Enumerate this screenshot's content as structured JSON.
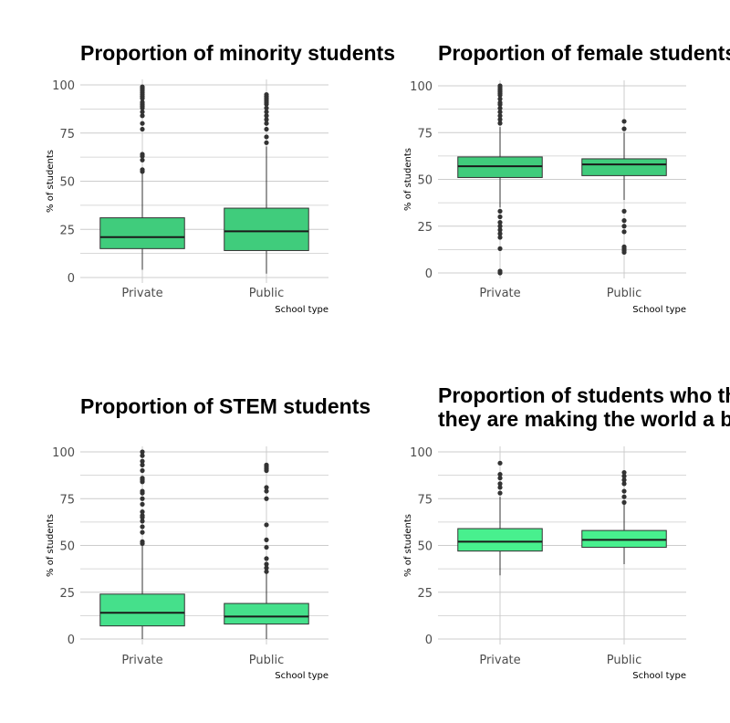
{
  "chart_data": [
    {
      "type": "boxplot",
      "title": [
        "Proportion of minority students"
      ],
      "xlabel": "School type",
      "ylabel": "% of students",
      "ylim": [
        0,
        100
      ],
      "yticks": [
        "0",
        "25",
        "50",
        "75",
        "100"
      ],
      "fill": "#40cc7c",
      "grid": true,
      "categories": [
        "Private",
        "Public"
      ],
      "boxes": [
        {
          "category": "Private",
          "lower_whisker": 4,
          "q1": 15,
          "median": 21,
          "q3": 31,
          "upper_whisker": 54,
          "outliers": [
            55,
            56,
            61,
            63,
            64,
            77,
            80,
            84,
            86,
            88,
            89,
            90,
            91,
            93,
            94,
            95,
            96,
            97,
            98,
            99
          ]
        },
        {
          "category": "Public",
          "lower_whisker": 2,
          "q1": 14,
          "median": 24,
          "q3": 36,
          "upper_whisker": 68,
          "outliers": [
            70,
            73,
            77,
            80,
            82,
            84,
            86,
            88,
            90,
            91,
            92,
            93,
            94,
            95
          ]
        }
      ]
    },
    {
      "type": "boxplot",
      "title": [
        "Proportion of female students"
      ],
      "xlabel": "School type",
      "ylabel": "% of students",
      "ylim": [
        0,
        100
      ],
      "yticks": [
        "0",
        "25",
        "50",
        "75",
        "100"
      ],
      "fill": "#40cc7c",
      "grid": true,
      "categories": [
        "Private",
        "Public"
      ],
      "boxes": [
        {
          "category": "Private",
          "lower_whisker": 35,
          "q1": 51,
          "median": 57,
          "q3": 62,
          "upper_whisker": 78,
          "outliers": [
            0,
            1,
            13,
            19,
            21,
            23,
            25,
            27,
            30,
            33,
            80,
            82,
            84,
            86,
            88,
            90,
            91,
            93,
            95,
            96,
            97,
            98,
            99,
            100
          ]
        },
        {
          "category": "Public",
          "lower_whisker": 39,
          "q1": 52,
          "median": 58,
          "q3": 61,
          "upper_whisker": 75,
          "outliers": [
            11,
            12,
            13,
            14,
            22,
            25,
            28,
            33,
            77,
            81
          ]
        }
      ]
    },
    {
      "type": "boxplot",
      "title": [
        "Proportion of STEM students"
      ],
      "xlabel": "School type",
      "ylabel": "% of students",
      "ylim": [
        0,
        100
      ],
      "yticks": [
        "0",
        "25",
        "50",
        "75",
        "100"
      ],
      "fill": "#45e08b",
      "grid": true,
      "categories": [
        "Private",
        "Public"
      ],
      "boxes": [
        {
          "category": "Private",
          "lower_whisker": 0,
          "q1": 7,
          "median": 14,
          "q3": 24,
          "upper_whisker": 50,
          "outliers": [
            51,
            52,
            57,
            60,
            63,
            65,
            66,
            68,
            72,
            75,
            78,
            79,
            84,
            85,
            86,
            90,
            93,
            95,
            98,
            100
          ]
        },
        {
          "category": "Public",
          "lower_whisker": 0,
          "q1": 8,
          "median": 12,
          "q3": 19,
          "upper_whisker": 35,
          "outliers": [
            36,
            38,
            40,
            43,
            49,
            53,
            61,
            75,
            79,
            81,
            90,
            91,
            92,
            93
          ]
        }
      ]
    },
    {
      "type": "boxplot",
      "title": [
        "Proportion of students who think",
        "they are making the world a bette"
      ],
      "xlabel": "School type",
      "ylabel": "% of students",
      "ylim": [
        0,
        100
      ],
      "yticks": [
        "0",
        "25",
        "50",
        "75",
        "100"
      ],
      "fill": "#48f08e",
      "grid": true,
      "categories": [
        "Private",
        "Public"
      ],
      "boxes": [
        {
          "category": "Private",
          "lower_whisker": 34,
          "q1": 47,
          "median": 52,
          "q3": 59,
          "upper_whisker": 76,
          "outliers": [
            78,
            81,
            83,
            86,
            88,
            94
          ]
        },
        {
          "category": "Public",
          "lower_whisker": 40,
          "q1": 49,
          "median": 53,
          "q3": 58,
          "upper_whisker": 72,
          "outliers": [
            73,
            76,
            79,
            83,
            85,
            87,
            89
          ]
        }
      ]
    }
  ]
}
